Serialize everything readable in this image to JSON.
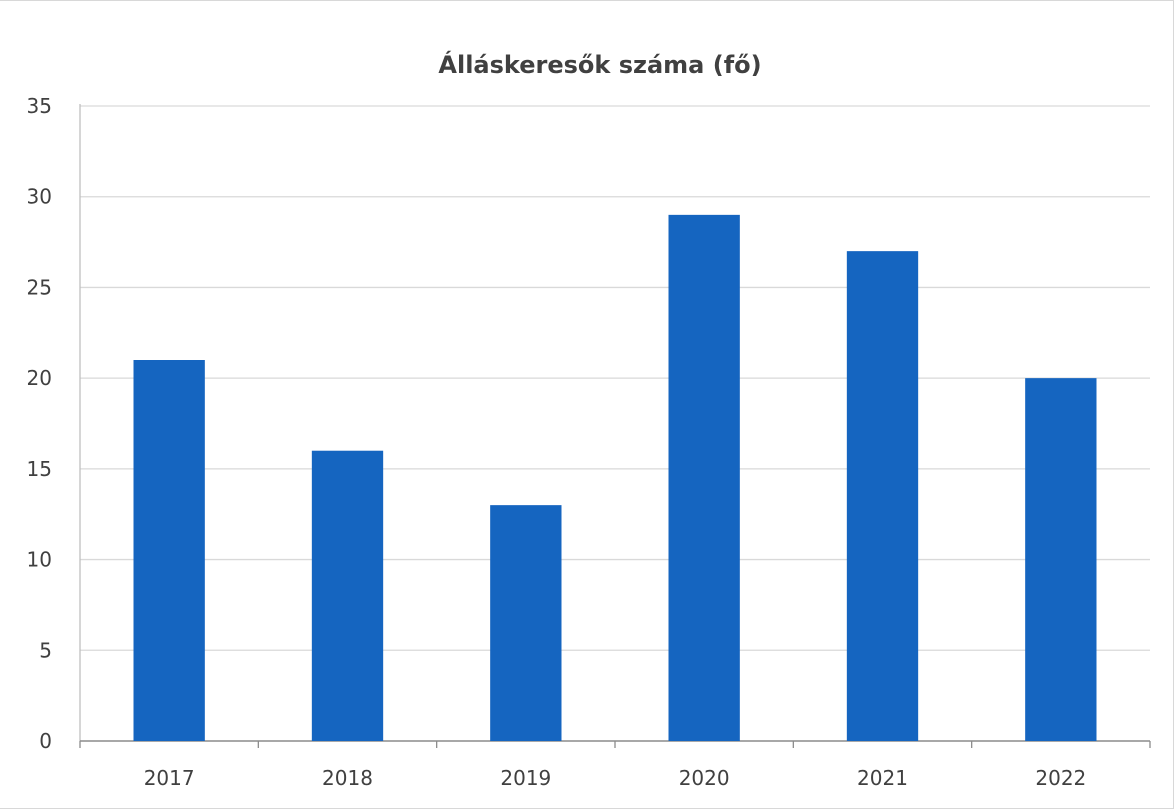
{
  "chart_data": {
    "type": "bar",
    "title": "Álláskeresők száma (fő)",
    "categories": [
      "2017",
      "2018",
      "2019",
      "2020",
      "2021",
      "2022"
    ],
    "values": [
      21,
      16,
      13,
      29,
      27,
      20
    ],
    "xlabel": "",
    "ylabel": "",
    "ylim": [
      0,
      35
    ],
    "yticks": [
      "0",
      "5",
      "10",
      "15",
      "20",
      "25",
      "30",
      "35"
    ],
    "grid": true,
    "legend": "none",
    "bar_color": "#1565c0"
  }
}
